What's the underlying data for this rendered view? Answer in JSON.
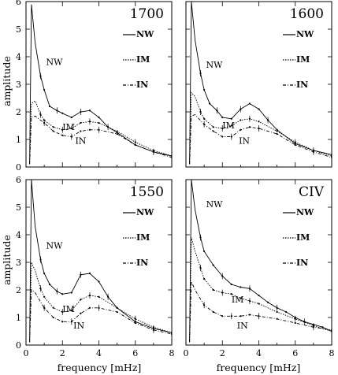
{
  "figure": {
    "ylabel": "amplitude",
    "xlabel": "frequency [mHz]"
  },
  "chart_data": [
    {
      "type": "line",
      "title": "1700",
      "xlabel": "frequency [mHz]",
      "ylabel": "amplitude",
      "xlim": [
        0,
        8
      ],
      "ylim": [
        0,
        6
      ],
      "xticks": [
        "0",
        "2",
        "4",
        "6",
        "8"
      ],
      "yticks": [
        "0",
        "1",
        "2",
        "3",
        "4",
        "5",
        "6"
      ],
      "legend": [
        "NW",
        "IM",
        "IN"
      ],
      "legend_position": "top-right",
      "series": [
        {
          "name": "NW",
          "style": "solid",
          "x": [
            0.2,
            0.3,
            0.5,
            0.8,
            1.0,
            1.3,
            1.7,
            2.0,
            2.5,
            3.0,
            3.5,
            4.0,
            4.5,
            5.0,
            6.0,
            7.0,
            8.0
          ],
          "y": [
            0.1,
            5.9,
            4.5,
            3.3,
            2.8,
            2.2,
            2.05,
            1.95,
            1.8,
            2.0,
            2.05,
            1.8,
            1.45,
            1.25,
            0.8,
            0.55,
            0.4
          ]
        },
        {
          "name": "IM",
          "style": "dotted",
          "x": [
            0.2,
            0.3,
            0.5,
            0.8,
            1.0,
            1.5,
            2.0,
            2.5,
            3.0,
            3.5,
            4.0,
            5.0,
            6.0,
            7.0,
            8.0
          ],
          "y": [
            0.1,
            2.3,
            2.4,
            1.9,
            1.7,
            1.45,
            1.35,
            1.4,
            1.6,
            1.65,
            1.6,
            1.3,
            0.9,
            0.6,
            0.4
          ]
        },
        {
          "name": "IN",
          "style": "dash-dot",
          "x": [
            0.2,
            0.3,
            0.5,
            1.0,
            1.5,
            2.0,
            2.5,
            3.0,
            3.5,
            4.0,
            5.0,
            6.0,
            7.0,
            8.0
          ],
          "y": [
            0.1,
            1.8,
            1.85,
            1.6,
            1.3,
            1.15,
            1.1,
            1.3,
            1.35,
            1.35,
            1.2,
            0.8,
            0.55,
            0.35
          ]
        }
      ],
      "annotations": [
        {
          "text": "NW",
          "x": 1.1,
          "y": 3.7
        },
        {
          "text": "IM",
          "x": 2.0,
          "y": 1.35
        },
        {
          "text": "IN",
          "x": 2.7,
          "y": 0.85
        }
      ]
    },
    {
      "type": "line",
      "title": "1600",
      "xlabel": "frequency [mHz]",
      "ylabel": "amplitude",
      "xlim": [
        0,
        8
      ],
      "ylim": [
        0,
        6
      ],
      "xticks": [
        "0",
        "2",
        "4",
        "6",
        "8"
      ],
      "yticks": [
        "0",
        "1",
        "2",
        "3",
        "4",
        "5",
        "6"
      ],
      "legend": [
        "NW",
        "IM",
        "IN"
      ],
      "legend_position": "top-right",
      "series": [
        {
          "name": "NW",
          "style": "solid",
          "x": [
            0.2,
            0.3,
            0.5,
            0.8,
            1.0,
            1.3,
            1.7,
            2.0,
            2.5,
            3.0,
            3.5,
            4.0,
            4.5,
            5.0,
            6.0,
            7.0,
            8.0
          ],
          "y": [
            0.1,
            6.0,
            4.6,
            3.4,
            2.8,
            2.3,
            2.05,
            1.8,
            1.75,
            2.1,
            2.3,
            2.1,
            1.7,
            1.35,
            0.85,
            0.6,
            0.45
          ]
        },
        {
          "name": "IM",
          "style": "dotted",
          "x": [
            0.2,
            0.3,
            0.5,
            0.8,
            1.0,
            1.5,
            2.0,
            2.5,
            3.0,
            3.5,
            4.0,
            5.0,
            6.0,
            7.0,
            8.0
          ],
          "y": [
            0.1,
            2.7,
            2.55,
            2.0,
            1.75,
            1.45,
            1.4,
            1.5,
            1.7,
            1.75,
            1.65,
            1.3,
            0.9,
            0.6,
            0.4
          ]
        },
        {
          "name": "IN",
          "style": "dash-dot",
          "x": [
            0.2,
            0.3,
            0.5,
            1.0,
            1.5,
            2.0,
            2.5,
            3.0,
            3.5,
            4.0,
            5.0,
            6.0,
            7.0,
            8.0
          ],
          "y": [
            0.1,
            1.85,
            1.9,
            1.55,
            1.3,
            1.1,
            1.1,
            1.35,
            1.45,
            1.4,
            1.2,
            0.8,
            0.55,
            0.35
          ]
        }
      ],
      "annotations": [
        {
          "text": "NW",
          "x": 1.1,
          "y": 3.6
        },
        {
          "text": "IM",
          "x": 2.0,
          "y": 1.4
        },
        {
          "text": "IN",
          "x": 2.9,
          "y": 0.85
        }
      ]
    },
    {
      "type": "line",
      "title": "1550",
      "xlabel": "frequency [mHz]",
      "ylabel": "amplitude",
      "xlim": [
        0,
        8
      ],
      "ylim": [
        0,
        6
      ],
      "xticks": [
        "0",
        "2",
        "4",
        "6",
        "8"
      ],
      "yticks": [
        "0",
        "1",
        "2",
        "3",
        "4",
        "5",
        "6"
      ],
      "legend": [
        "NW",
        "IM",
        "IN"
      ],
      "legend_position": "top-right",
      "series": [
        {
          "name": "NW",
          "style": "solid",
          "x": [
            0.2,
            0.3,
            0.5,
            0.8,
            1.0,
            1.3,
            1.7,
            2.0,
            2.5,
            3.0,
            3.5,
            4.0,
            4.5,
            5.0,
            6.0,
            7.0,
            8.0
          ],
          "y": [
            0.1,
            6.0,
            4.3,
            3.1,
            2.6,
            2.2,
            1.95,
            1.85,
            1.9,
            2.55,
            2.6,
            2.3,
            1.75,
            1.35,
            0.85,
            0.6,
            0.45
          ]
        },
        {
          "name": "IM",
          "style": "dotted",
          "x": [
            0.2,
            0.3,
            0.5,
            0.8,
            1.0,
            1.5,
            2.0,
            2.5,
            3.0,
            3.5,
            4.0,
            5.0,
            6.0,
            7.0,
            8.0
          ],
          "y": [
            0.1,
            3.0,
            2.7,
            2.05,
            1.75,
            1.35,
            1.2,
            1.25,
            1.65,
            1.8,
            1.75,
            1.35,
            0.95,
            0.65,
            0.45
          ]
        },
        {
          "name": "IN",
          "style": "dash-dot",
          "x": [
            0.2,
            0.3,
            0.5,
            1.0,
            1.5,
            2.0,
            2.5,
            3.0,
            3.5,
            4.0,
            5.0,
            6.0,
            7.0,
            8.0
          ],
          "y": [
            0.1,
            2.0,
            1.9,
            1.35,
            1.0,
            0.85,
            0.85,
            1.15,
            1.35,
            1.35,
            1.2,
            0.8,
            0.55,
            0.4
          ]
        }
      ],
      "annotations": [
        {
          "text": "NW",
          "x": 1.1,
          "y": 3.5
        },
        {
          "text": "IM",
          "x": 2.0,
          "y": 1.2
        },
        {
          "text": "IN",
          "x": 2.6,
          "y": 0.6
        }
      ]
    },
    {
      "type": "line",
      "title": "CIV",
      "xlabel": "frequency [mHz]",
      "ylabel": "amplitude",
      "xlim": [
        0,
        8
      ],
      "ylim": [
        0,
        6
      ],
      "xticks": [
        "0",
        "2",
        "4",
        "6",
        "8"
      ],
      "yticks": [
        "0",
        "1",
        "2",
        "3",
        "4",
        "5",
        "6"
      ],
      "legend": [
        "NW",
        "IM",
        "IN"
      ],
      "legend_position": "top-right",
      "series": [
        {
          "name": "NW",
          "style": "solid",
          "x": [
            0.2,
            0.3,
            0.5,
            0.8,
            1.0,
            1.5,
            2.0,
            2.5,
            3.0,
            3.5,
            4.0,
            4.5,
            5.0,
            5.5,
            6.0,
            6.5,
            7.0,
            7.5,
            8.0
          ],
          "y": [
            0.1,
            6.0,
            4.9,
            3.9,
            3.4,
            2.9,
            2.5,
            2.2,
            2.1,
            2.05,
            1.8,
            1.55,
            1.35,
            1.2,
            1.0,
            0.85,
            0.75,
            0.65,
            0.5
          ]
        },
        {
          "name": "IM",
          "style": "dotted",
          "x": [
            0.2,
            0.3,
            0.5,
            0.8,
            1.0,
            1.5,
            2.0,
            2.5,
            3.0,
            3.5,
            4.0,
            5.0,
            6.0,
            7.0,
            8.0
          ],
          "y": [
            0.1,
            3.9,
            3.4,
            2.8,
            2.4,
            2.0,
            1.9,
            1.85,
            1.7,
            1.6,
            1.5,
            1.2,
            0.95,
            0.7,
            0.5
          ]
        },
        {
          "name": "IN",
          "style": "dash-dot",
          "x": [
            0.2,
            0.3,
            0.5,
            1.0,
            1.5,
            2.0,
            2.5,
            3.0,
            3.5,
            4.0,
            5.0,
            6.0,
            7.0,
            8.0
          ],
          "y": [
            0.1,
            2.3,
            2.0,
            1.45,
            1.2,
            1.05,
            1.05,
            1.05,
            1.1,
            1.05,
            0.95,
            0.8,
            0.65,
            0.55
          ]
        }
      ],
      "annotations": [
        {
          "text": "NW",
          "x": 1.1,
          "y": 5.0
        },
        {
          "text": "IM",
          "x": 2.5,
          "y": 1.55
        },
        {
          "text": "IN",
          "x": 2.8,
          "y": 0.6
        }
      ]
    }
  ]
}
